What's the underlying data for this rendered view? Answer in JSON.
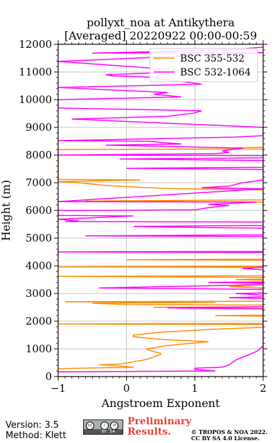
{
  "chart_data": {
    "type": "line",
    "title": "pollyxt_noa at Antikythera",
    "subtitle": "[Averaged] 20220922 00:00-00:59",
    "xlabel": "Angstroem Exponent",
    "ylabel": "Height (m)",
    "xlim": [
      -1,
      2
    ],
    "ylim": [
      0,
      12000
    ],
    "xticks": [
      -1,
      0,
      1,
      2
    ],
    "yticks": [
      0,
      1000,
      2000,
      3000,
      4000,
      5000,
      6000,
      7000,
      8000,
      9000,
      10000,
      11000,
      12000
    ],
    "grid": true,
    "legend_position": "top-right",
    "series": [
      {
        "name": "BSC 355-532",
        "color": "#ff8c00",
        "points": [
          [
            -1.0,
            280
          ],
          [
            -0.3,
            320
          ],
          [
            0.1,
            330
          ],
          [
            0.1,
            340
          ],
          [
            -0.4,
            430
          ],
          [
            -0.1,
            450
          ],
          [
            0.3,
            620
          ],
          [
            0.5,
            800
          ],
          [
            0.5,
            840
          ],
          [
            0.4,
            900
          ],
          [
            0.3,
            980
          ],
          [
            0.3,
            1000
          ],
          [
            0.6,
            1120
          ],
          [
            1.2,
            1260
          ],
          [
            0.5,
            1340
          ],
          [
            0.1,
            1440
          ],
          [
            0.1,
            1500
          ],
          [
            0.5,
            1600
          ],
          [
            1.2,
            1700
          ],
          [
            1.8,
            1760
          ],
          [
            2.0,
            1780
          ],
          [
            2.0,
            1880
          ],
          [
            -1.0,
            1900
          ],
          [
            2.0,
            1920
          ],
          [
            2.0,
            2180
          ],
          [
            1.3,
            2200
          ],
          [
            2.0,
            2220
          ],
          [
            2.0,
            2460
          ],
          [
            0.4,
            2500
          ],
          [
            2.0,
            2520
          ],
          [
            2.0,
            2580
          ],
          [
            0.0,
            2600
          ],
          [
            -0.5,
            2650
          ],
          [
            1.3,
            2680
          ],
          [
            -0.9,
            2700
          ],
          [
            2.0,
            2720
          ],
          [
            2.0,
            3200
          ],
          [
            1.5,
            3250
          ],
          [
            2.0,
            3300
          ],
          [
            2.0,
            3480
          ],
          [
            1.6,
            3500
          ],
          [
            2.0,
            3520
          ],
          [
            2.0,
            3580
          ],
          [
            -1.0,
            3620
          ],
          [
            2.0,
            3640
          ],
          [
            2.0,
            3940
          ],
          [
            -1.0,
            3960
          ],
          [
            2.0,
            3980
          ],
          [
            2.0,
            4200
          ],
          [
            0.0,
            4220
          ],
          [
            2.0,
            4240
          ],
          [
            2.0,
            6300
          ],
          [
            -0.6,
            6340
          ],
          [
            2.0,
            6380
          ],
          [
            2.0,
            6740
          ],
          [
            0.9,
            6780
          ],
          [
            0.5,
            6800
          ],
          [
            -0.3,
            6900
          ],
          [
            -0.7,
            7000
          ],
          [
            -1.0,
            7040
          ],
          [
            0.2,
            7100
          ],
          [
            -1.0,
            7120
          ],
          [
            -1.0,
            8200
          ],
          [
            2.0,
            8220
          ],
          [
            2.0,
            8280
          ],
          [
            1.6,
            8260
          ]
        ]
      },
      {
        "name": "BSC 532-1064",
        "color": "#ff00ff",
        "points": [
          [
            -1.0,
            170
          ],
          [
            1.3,
            200
          ],
          [
            1.0,
            260
          ],
          [
            1.0,
            300
          ],
          [
            1.4,
            340
          ],
          [
            1.5,
            420
          ],
          [
            1.6,
            600
          ],
          [
            1.7,
            700
          ],
          [
            1.8,
            800
          ],
          [
            1.9,
            900
          ],
          [
            2.0,
            1100
          ],
          [
            2.0,
            2440
          ],
          [
            0.6,
            2480
          ],
          [
            2.0,
            2520
          ],
          [
            2.0,
            2820
          ],
          [
            1.5,
            2850
          ],
          [
            2.0,
            2880
          ],
          [
            2.0,
            2940
          ],
          [
            1.6,
            3000
          ],
          [
            2.0,
            3020
          ],
          [
            2.0,
            3150
          ],
          [
            -0.4,
            3200
          ],
          [
            1.6,
            3300
          ],
          [
            2.0,
            3350
          ],
          [
            2.0,
            3380
          ],
          [
            1.2,
            3400
          ],
          [
            2.0,
            3420
          ],
          [
            2.0,
            3860
          ],
          [
            1.7,
            3900
          ],
          [
            2.0,
            3960
          ],
          [
            2.0,
            4480
          ],
          [
            -1.0,
            4500
          ],
          [
            2.0,
            4520
          ],
          [
            2.0,
            5120
          ],
          [
            -0.6,
            5080
          ],
          [
            2.0,
            5060
          ],
          [
            2.0,
            5360
          ],
          [
            0.6,
            5400
          ],
          [
            0.1,
            5420
          ],
          [
            2.0,
            5460
          ],
          [
            2.0,
            5580
          ],
          [
            -0.9,
            5600
          ],
          [
            -0.7,
            5620
          ],
          [
            -1.0,
            5680
          ],
          [
            0.1,
            5800
          ],
          [
            -1.0,
            5820
          ],
          [
            -1.0,
            6000
          ],
          [
            1.0,
            6020
          ],
          [
            1.2,
            6100
          ],
          [
            1.5,
            6180
          ],
          [
            1.2,
            6220
          ],
          [
            1.9,
            6300
          ],
          [
            -1.0,
            6320
          ],
          [
            2.0,
            6780
          ],
          [
            1.1,
            6820
          ],
          [
            1.5,
            6880
          ],
          [
            1.7,
            7000
          ],
          [
            2.0,
            7100
          ],
          [
            2.0,
            7480
          ],
          [
            0.0,
            7520
          ],
          [
            2.0,
            7560
          ],
          [
            2.0,
            7800
          ],
          [
            -0.1,
            7860
          ],
          [
            2.0,
            7900
          ],
          [
            2.0,
            7980
          ],
          [
            -1.0,
            8000
          ],
          [
            1.3,
            8050
          ],
          [
            1.5,
            8100
          ],
          [
            1.4,
            8150
          ],
          [
            1.7,
            8250
          ],
          [
            -0.3,
            8360
          ],
          [
            0.8,
            8400
          ],
          [
            0.3,
            8500
          ],
          [
            -1.0,
            8520
          ],
          [
            1.6,
            8650
          ],
          [
            2.0,
            8700
          ],
          [
            2.0,
            9000
          ],
          [
            -0.8,
            9300
          ],
          [
            0.6,
            9400
          ],
          [
            1.0,
            9520
          ],
          [
            1.1,
            9600
          ],
          [
            -1.0,
            9700
          ],
          [
            -1.0,
            10000
          ],
          [
            0.8,
            10100
          ],
          [
            0.4,
            10200
          ],
          [
            0.6,
            10260
          ],
          [
            -1.0,
            10440
          ],
          [
            1.1,
            10560
          ],
          [
            0.3,
            10820
          ],
          [
            -0.2,
            10860
          ],
          [
            -0.3,
            10900
          ],
          [
            0.6,
            10980
          ],
          [
            0.9,
            11050
          ],
          [
            -1.0,
            11380
          ],
          [
            2.0,
            11700
          ],
          [
            -0.5,
            11680
          ],
          [
            1.5,
            11800
          ],
          [
            2.0,
            11900
          ]
        ]
      }
    ]
  },
  "footer": {
    "version": "Version: 3.5",
    "method": "Method: Klett",
    "preliminary": "Preliminary Results.",
    "copyright_line1": "© TROPOS & NOA 2022.",
    "copyright_line2": "CC BY SA 4.0 License."
  }
}
